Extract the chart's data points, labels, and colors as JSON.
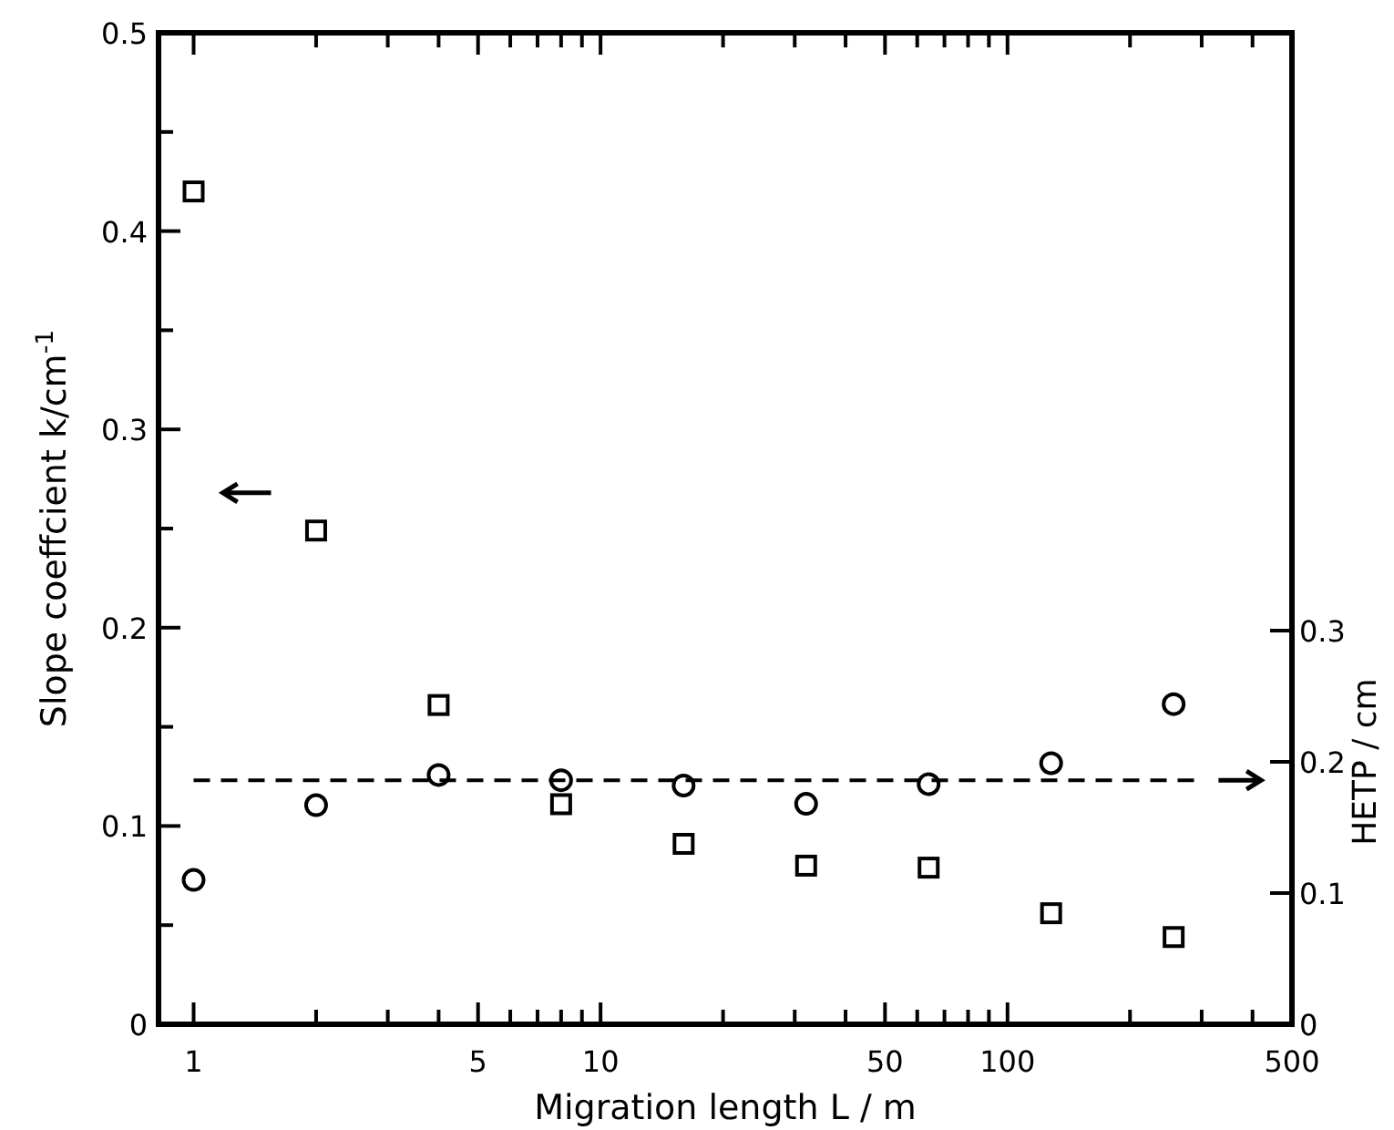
{
  "chart_data": {
    "type": "scatter",
    "xlabel": "Migration length  L / m",
    "ylabel": "Slope coeffcient  k/cm$^{-1}$",
    "y2label": "HETP / cm",
    "log": "x",
    "xlim": [
      0.82,
      500
    ],
    "xticks": [
      1,
      {
        "value": 2,
        "label": null
      },
      {
        "value": 3,
        "label": null
      },
      {
        "value": 4,
        "label": null
      },
      5,
      {
        "value": 6,
        "label": null
      },
      {
        "value": 7,
        "label": null
      },
      {
        "value": 8,
        "label": null
      },
      {
        "value": 9,
        "label": null
      },
      10,
      {
        "value": 20,
        "label": null
      },
      {
        "value": 30,
        "label": null
      },
      {
        "value": 40,
        "label": null
      },
      50,
      {
        "value": 60,
        "label": null
      },
      {
        "value": 70,
        "label": null
      },
      {
        "value": 80,
        "label": null
      },
      {
        "value": 90,
        "label": null
      },
      100,
      {
        "value": 200,
        "label": null
      },
      {
        "value": 300,
        "label": null
      },
      {
        "value": 400,
        "label": null
      },
      500
    ],
    "ylim": [
      0,
      0.5
    ],
    "yticks": [
      0,
      {
        "value": 0.05,
        "label": null
      },
      0.1,
      {
        "value": 0.15,
        "label": null
      },
      0.2,
      {
        "value": 0.25,
        "label": null
      },
      0.3,
      {
        "value": 0.35,
        "label": null
      },
      0.4,
      {
        "value": 0.45,
        "label": null
      },
      0.5
    ],
    "y2lim": [
      0,
      0.7556
    ],
    "y2ticks": [
      0,
      0.1,
      0.2,
      0.3
    ],
    "x": [
      1,
      2,
      4,
      8,
      16,
      32,
      64,
      128,
      256
    ],
    "series": [
      {
        "color": "#000000",
        "marker": "square",
        "values": [
          0.42,
          0.249,
          0.161,
          0.111,
          0.091,
          0.08,
          0.079,
          0.056,
          0.044
        ]
      },
      {
        "color": "#000000",
        "marker": "circle",
        "axis": "y2",
        "values": [
          0.11,
          0.167,
          0.19,
          0.186,
          0.182,
          0.168,
          0.183,
          0.199,
          0.244
        ]
      }
    ],
    "ref_lines": [
      {
        "axis": "y2",
        "value": 0.186,
        "line_style": "dashed",
        "color": "#000000"
      }
    ],
    "grid": false
  }
}
